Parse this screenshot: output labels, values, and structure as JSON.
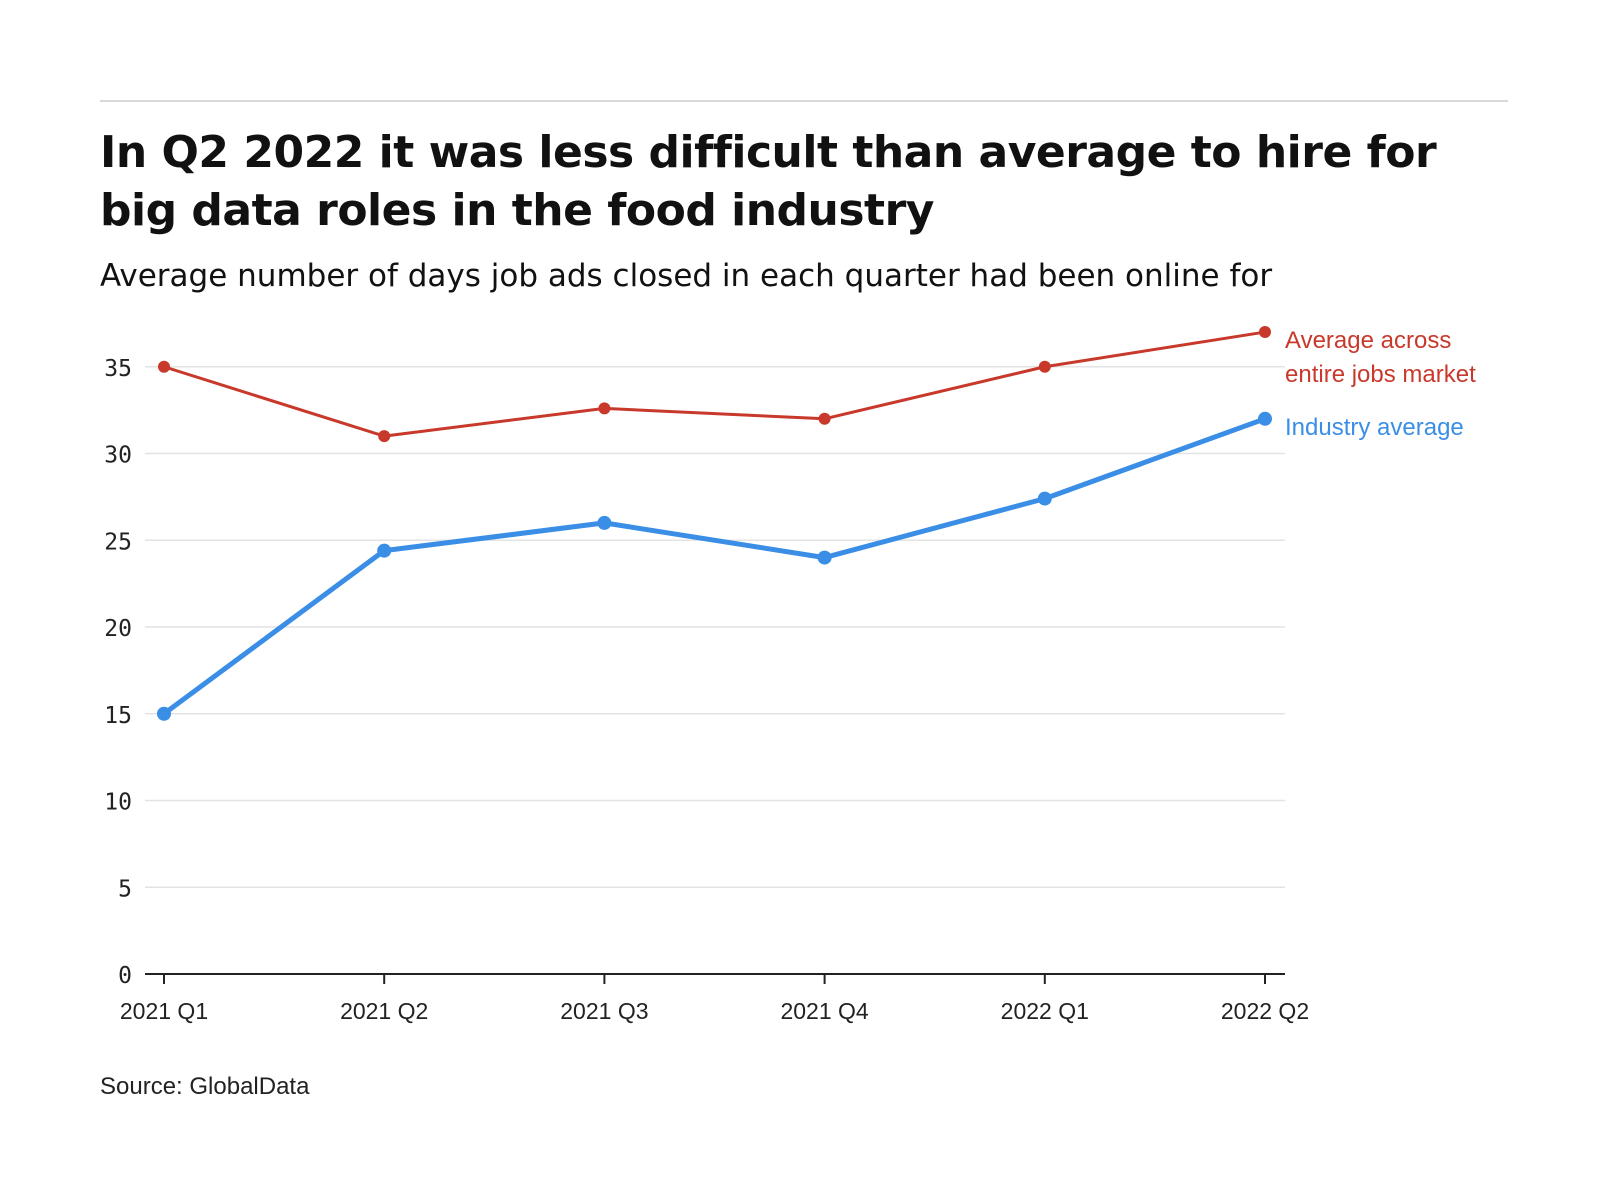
{
  "title": "In Q2 2022 it was less difficult than average to hire for big data roles in the food industry",
  "subtitle": "Average number of days job ads closed in each quarter had been online for",
  "source": "Source: GlobalData",
  "chart_data": {
    "type": "line",
    "categories": [
      "2021 Q1",
      "2021 Q2",
      "2021 Q3",
      "2021 Q4",
      "2022 Q1",
      "2022 Q2"
    ],
    "series": [
      {
        "name": "Average across entire jobs market",
        "label_lines": [
          "Average across",
          "entire jobs market"
        ],
        "color": "#c8392b",
        "values": [
          35,
          31,
          32.6,
          32,
          35,
          37
        ]
      },
      {
        "name": "Industry average",
        "label_lines": [
          "Industry average"
        ],
        "color": "#3a8ee6",
        "values": [
          15,
          24.4,
          26,
          24,
          27.4,
          32
        ]
      }
    ],
    "ylim": [
      0,
      37
    ],
    "yticks": [
      0,
      5,
      10,
      15,
      20,
      25,
      30,
      35
    ],
    "grid": true,
    "legend": "direct labels at line ends",
    "xlabel": "",
    "ylabel": ""
  }
}
